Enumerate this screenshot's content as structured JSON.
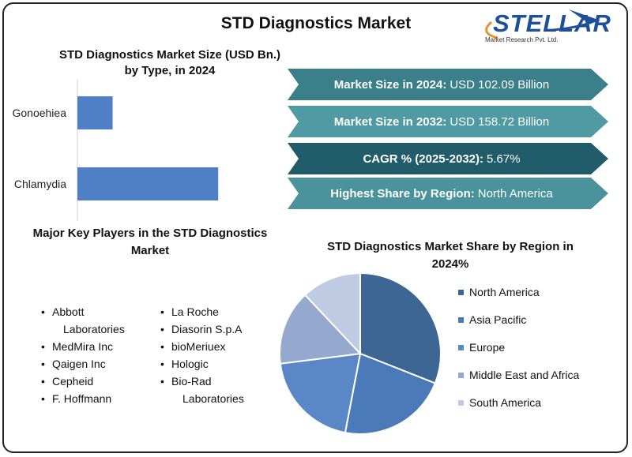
{
  "title": "STD Diagnostics Market",
  "logo": {
    "word": "STELLAR",
    "sub": "Market Research Pvt. Ltd."
  },
  "bar_title_1": "STD Diagnostics Market Size (USD Bn.)",
  "bar_title_2": "by Type, in 2024",
  "info": [
    {
      "label": "Market Size in 2024:",
      "value": "USD 102.09 Billion",
      "color": "#3a7f8a"
    },
    {
      "label": "Market Size in 2032:",
      "value": "USD 158.72 Billion",
      "color": "#4f9aa3"
    },
    {
      "label": "CAGR % (2025-2032):",
      "value": "5.67%",
      "color": "#215c6a"
    },
    {
      "label": "Highest Share by Region:",
      "value": "North America",
      "color": "#4a929c"
    }
  ],
  "players_title_1": "Major Key Players in the STD Diagnostics",
  "players_title_2": "Market",
  "players_col1": [
    "Abbott",
    "Laboratories",
    "MedMira Inc",
    "Qaigen Inc",
    "Cepheid",
    "F. Hoffmann"
  ],
  "players_col2": [
    "La Roche",
    "Diasorin S.p.A",
    "bioMeriuex",
    "Hologic",
    "Bio-Rad",
    "Laboratories"
  ],
  "pie_title_1": "STD Diagnostics Market Share by Region in",
  "pie_title_2": "2024%",
  "chart_data": [
    {
      "type": "bar",
      "orientation": "horizontal",
      "title": "STD Diagnostics Market Size (USD Bn.) by Type, in 2024",
      "categories": [
        "Gonoehiea",
        "Chlamydia"
      ],
      "values": [
        15,
        60
      ],
      "xlim": [
        0,
        100
      ],
      "color": "#4f7fc4",
      "grid": false
    },
    {
      "type": "pie",
      "title": "STD Diagnostics Market Share by Region in 2024%",
      "labels": [
        "North America",
        "Asia Pacific",
        "Europe",
        "Middle East and Africa",
        "South America"
      ],
      "values": [
        31,
        22,
        20,
        15,
        12
      ],
      "colors": [
        "#3e6695",
        "#4a7ab8",
        "#5a87c6",
        "#94a9cd",
        "#bfcbe3"
      ],
      "legend": "right"
    }
  ]
}
